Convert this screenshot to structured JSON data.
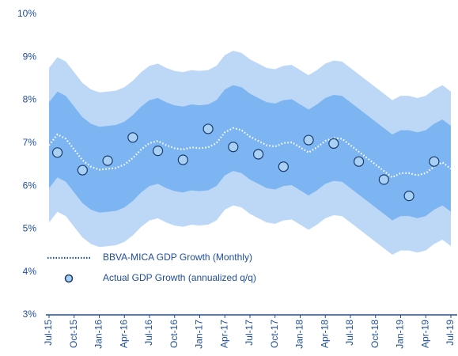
{
  "chart_data": {
    "type": "fan",
    "categories": [
      "Jul-15",
      null,
      null,
      "Oct-15",
      null,
      null,
      "Jan-16",
      null,
      null,
      "Apr-16",
      null,
      null,
      "Jul-16",
      null,
      null,
      "Oct-16",
      null,
      null,
      "Jan-17",
      null,
      null,
      "Apr-17",
      null,
      null,
      "Jul-17",
      null,
      null,
      "Oct-17",
      null,
      null,
      "Jan-18",
      null,
      null,
      "Apr-18",
      null,
      null,
      "Jul-18",
      null,
      null,
      "Oct-18",
      null,
      null,
      "Jan-19",
      null,
      null,
      "Apr-19",
      null,
      null,
      "Jul-19"
    ],
    "ylim": [
      3,
      10
    ],
    "yticks": [
      {
        "value": 3,
        "label": "3%"
      },
      {
        "value": 4,
        "label": "4%"
      },
      {
        "value": 5,
        "label": "5%"
      },
      {
        "value": 6,
        "label": "6%"
      },
      {
        "value": 7,
        "label": "7%"
      },
      {
        "value": 8,
        "label": "8%"
      },
      {
        "value": 9,
        "label": "9%"
      },
      {
        "value": 10,
        "label": "10%"
      }
    ],
    "legend": "lower left",
    "bands": [
      {
        "color": "#bdd8f7",
        "upper": [
          8.75,
          9.0,
          8.9,
          8.65,
          8.4,
          8.25,
          8.18,
          8.2,
          8.22,
          8.3,
          8.45,
          8.65,
          8.8,
          8.85,
          8.75,
          8.68,
          8.65,
          8.7,
          8.68,
          8.7,
          8.8,
          9.05,
          9.15,
          9.1,
          8.95,
          8.85,
          8.75,
          8.72,
          8.8,
          8.82,
          8.7,
          8.58,
          8.7,
          8.85,
          8.92,
          8.9,
          8.75,
          8.6,
          8.45,
          8.3,
          8.15,
          8.0,
          8.1,
          8.1,
          8.05,
          8.1,
          8.25,
          8.35,
          8.2
        ],
        "lower": [
          5.15,
          5.4,
          5.3,
          5.05,
          4.8,
          4.65,
          4.58,
          4.6,
          4.62,
          4.7,
          4.85,
          5.05,
          5.2,
          5.25,
          5.15,
          5.08,
          5.05,
          5.1,
          5.08,
          5.1,
          5.2,
          5.45,
          5.55,
          5.5,
          5.35,
          5.25,
          5.15,
          5.12,
          5.2,
          5.22,
          5.1,
          4.98,
          5.1,
          5.25,
          5.32,
          5.3,
          5.15,
          5.0,
          4.85,
          4.7,
          4.55,
          4.4,
          4.5,
          4.5,
          4.45,
          4.5,
          4.65,
          4.75,
          4.6
        ]
      },
      {
        "color": "#7db5f2",
        "upper": [
          7.95,
          8.2,
          8.1,
          7.85,
          7.6,
          7.45,
          7.38,
          7.4,
          7.42,
          7.5,
          7.65,
          7.85,
          8.0,
          8.05,
          7.95,
          7.88,
          7.85,
          7.9,
          7.88,
          7.9,
          8.0,
          8.25,
          8.35,
          8.3,
          8.15,
          8.05,
          7.95,
          7.92,
          8.0,
          8.02,
          7.9,
          7.78,
          7.9,
          8.05,
          8.12,
          8.1,
          7.95,
          7.8,
          7.65,
          7.5,
          7.35,
          7.2,
          7.3,
          7.3,
          7.25,
          7.3,
          7.45,
          7.55,
          7.4
        ],
        "lower": [
          5.95,
          6.2,
          6.1,
          5.85,
          5.6,
          5.45,
          5.38,
          5.4,
          5.42,
          5.5,
          5.65,
          5.85,
          6.0,
          6.05,
          5.95,
          5.88,
          5.85,
          5.9,
          5.88,
          5.9,
          6.0,
          6.25,
          6.35,
          6.3,
          6.15,
          6.05,
          5.95,
          5.92,
          6.0,
          6.02,
          5.9,
          5.78,
          5.9,
          6.05,
          6.12,
          6.1,
          5.95,
          5.8,
          5.65,
          5.5,
          5.35,
          5.2,
          5.3,
          5.3,
          5.25,
          5.3,
          5.45,
          5.55,
          5.4
        ]
      }
    ],
    "series": [
      {
        "name": "BBVA-MICA GDP Growth (Monthly)",
        "color": "#ffffff",
        "legend_color": "#1f4e99",
        "style": "dotted",
        "values": [
          6.95,
          7.2,
          7.1,
          6.85,
          6.6,
          6.45,
          6.38,
          6.4,
          6.42,
          6.5,
          6.65,
          6.85,
          7.0,
          7.05,
          6.95,
          6.88,
          6.85,
          6.9,
          6.88,
          6.9,
          7.0,
          7.25,
          7.35,
          7.3,
          7.15,
          7.05,
          6.95,
          6.92,
          7.0,
          7.02,
          6.9,
          6.78,
          6.9,
          7.05,
          7.12,
          7.1,
          6.95,
          6.8,
          6.65,
          6.5,
          6.35,
          6.2,
          6.3,
          6.3,
          6.25,
          6.3,
          6.45,
          6.55,
          6.4
        ]
      },
      {
        "name": "Actual GDP Growth (annualized q/q)",
        "color": "#a9d1f6",
        "edge_color": "#1a3a6b",
        "style": "marker",
        "values": [
          null,
          6.78,
          null,
          null,
          6.37,
          null,
          null,
          6.59,
          null,
          null,
          7.13,
          null,
          null,
          6.82,
          null,
          null,
          6.61,
          null,
          null,
          7.33,
          null,
          null,
          6.91,
          null,
          null,
          6.74,
          null,
          null,
          6.45,
          null,
          null,
          7.07,
          null,
          null,
          6.99,
          null,
          null,
          6.57,
          null,
          null,
          6.15,
          null,
          null,
          5.77,
          null,
          null,
          6.57,
          null,
          null
        ]
      }
    ]
  }
}
